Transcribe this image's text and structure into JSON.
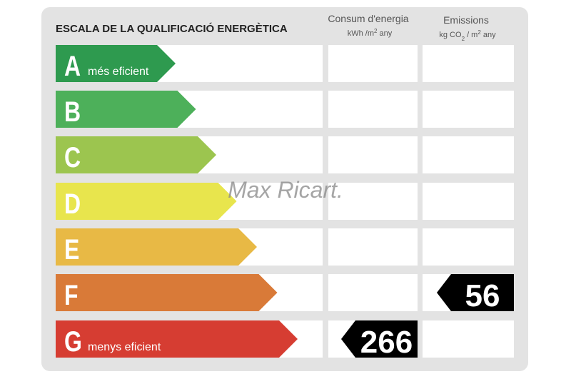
{
  "title": "ESCALA DE LA QUALIFICACIÓ ENERGÈTICA",
  "columns": {
    "consumption": {
      "heading": "Consum d'energia",
      "unit_parts": [
        "kWh /m",
        "2",
        " any"
      ]
    },
    "emissions": {
      "heading": "Emissions",
      "unit_parts": [
        "kg CO",
        "2",
        " / m",
        "2",
        " any"
      ]
    }
  },
  "rows": [
    {
      "letter": "A",
      "label": "més eficient"
    },
    {
      "letter": "B"
    },
    {
      "letter": "C"
    },
    {
      "letter": "D"
    },
    {
      "letter": "E"
    },
    {
      "letter": "F",
      "emissions": 56
    },
    {
      "letter": "G",
      "label": "menys eficient",
      "consumption": 266
    }
  ],
  "watermark": "Max Ricart."
}
